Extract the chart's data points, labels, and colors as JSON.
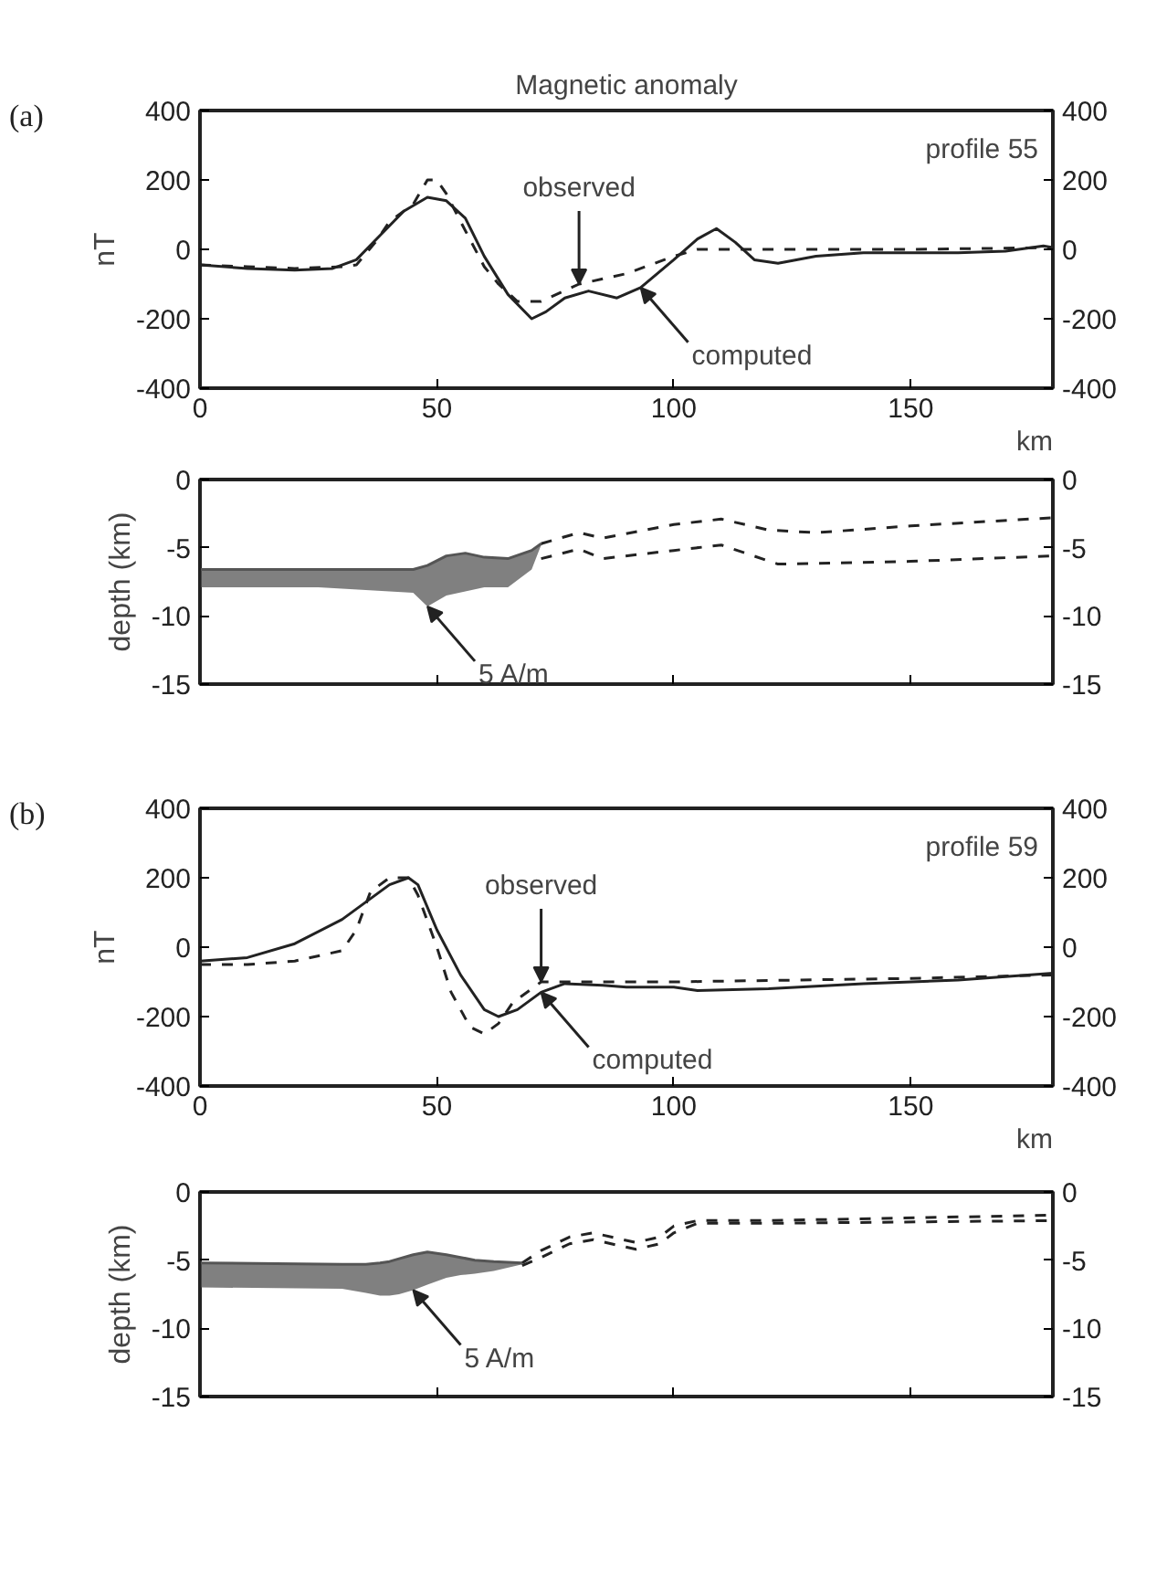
{
  "chart_data": [
    {
      "type": "line",
      "title": "Magnetic anomaly",
      "xlabel": "km",
      "ylabel": "nT",
      "xlim": [
        0,
        180
      ],
      "xticks": [
        0,
        50,
        100,
        150
      ],
      "ylim": [
        -400,
        400
      ],
      "yticks": [
        -400,
        -200,
        0,
        200,
        400
      ],
      "y2lim": [
        -400,
        400
      ],
      "y2ticks": [
        -400,
        -200,
        0,
        200,
        400
      ],
      "grid": false,
      "annotations": [
        "(a)",
        "profile 55",
        {
          "text": "observed",
          "x": 80,
          "y": -100
        },
        {
          "text": "computed",
          "x": 93,
          "y": -110
        }
      ],
      "series": [
        {
          "line_style": "dashed",
          "color": "#222222",
          "x": [
            0,
            10,
            20,
            30,
            33,
            37,
            40,
            45,
            48,
            50,
            52,
            55,
            60,
            63,
            67,
            72,
            80,
            90,
            100,
            105,
            110,
            150,
            180
          ],
          "values": [
            -45,
            -50,
            -55,
            -50,
            -45,
            20,
            80,
            130,
            200,
            200,
            160,
            80,
            -50,
            -100,
            -150,
            -150,
            -100,
            -70,
            -20,
            0,
            0,
            0,
            5
          ]
        },
        {
          "line_style": "solid",
          "color": "#222222",
          "x": [
            0,
            10,
            20,
            28,
            33,
            38,
            43,
            48,
            52,
            56,
            60,
            65,
            70,
            73,
            77,
            82,
            88,
            93,
            100,
            105,
            109,
            113,
            117,
            122,
            130,
            140,
            150,
            160,
            170,
            178,
            180
          ],
          "values": [
            -45,
            -55,
            -60,
            -55,
            -30,
            40,
            110,
            150,
            140,
            90,
            -20,
            -130,
            -200,
            -180,
            -140,
            -120,
            -140,
            -110,
            -30,
            30,
            60,
            20,
            -30,
            -40,
            -20,
            -10,
            -10,
            -10,
            -5,
            10,
            5
          ]
        }
      ]
    },
    {
      "type": "line",
      "ylabel": "depth (km)",
      "xlim": [
        0,
        180
      ],
      "xticks": [
        0,
        50,
        100,
        150
      ],
      "ylim": [
        -15,
        0
      ],
      "yticks": [
        -15,
        -10,
        -5,
        0
      ],
      "y2lim": [
        -15,
        0
      ],
      "y2ticks": [
        -15,
        -10,
        -5,
        0
      ],
      "tick_labels": "y",
      "grid": false,
      "annotations": [
        {
          "text": "5 A/m",
          "x": 48,
          "y": -9.3
        }
      ],
      "series": [
        {
          "line_style": "solid",
          "color": "#555555",
          "x": [
            0,
            25,
            45,
            48,
            52,
            56,
            60,
            65,
            70,
            72
          ],
          "values": [
            -6.6,
            -6.6,
            -6.6,
            -6.3,
            -5.6,
            -5.4,
            -5.7,
            -5.8,
            -5.2,
            -4.7
          ],
          "upper": [
            -6.6,
            -6.6,
            -6.6,
            -6.3,
            -5.6,
            -5.4,
            -5.7,
            -5.8,
            -5.2,
            -4.7
          ],
          "lower": [
            -7.9,
            -7.9,
            -8.3,
            -9.3,
            -8.5,
            -8.2,
            -7.9,
            -7.9,
            -6.6,
            -4.8
          ]
        },
        {
          "line_style": "dashed",
          "color": "#222222",
          "x": [
            72,
            80,
            85,
            100,
            110,
            120,
            130,
            150,
            180
          ],
          "values": [
            -4.7,
            -3.9,
            -4.3,
            -3.3,
            -2.9,
            -3.7,
            -3.9,
            -3.4,
            -2.8
          ]
        },
        {
          "line_style": "dashed",
          "color": "#222222",
          "x": [
            72,
            80,
            85,
            100,
            110,
            122,
            150,
            180
          ],
          "values": [
            -5.8,
            -5.1,
            -5.8,
            -5.2,
            -4.8,
            -6.2,
            -6.0,
            -5.6
          ]
        }
      ]
    },
    {
      "type": "line",
      "xlabel": "km",
      "ylabel": "nT",
      "xlim": [
        0,
        180
      ],
      "xticks": [
        0,
        50,
        100,
        150
      ],
      "ylim": [
        -400,
        400
      ],
      "yticks": [
        -400,
        -200,
        0,
        200,
        400
      ],
      "y2lim": [
        -400,
        400
      ],
      "y2ticks": [
        -400,
        -200,
        0,
        200,
        400
      ],
      "grid": false,
      "annotations": [
        "(b)",
        "profile 59",
        {
          "text": "observed",
          "x": 72,
          "y": -100
        },
        {
          "text": "computed",
          "x": 72,
          "y": -130
        }
      ],
      "series": [
        {
          "line_style": "dashed",
          "color": "#222222",
          "x": [
            0,
            10,
            20,
            30,
            33,
            36,
            40,
            44,
            46,
            50,
            53,
            57,
            60,
            63,
            66,
            70,
            72,
            100,
            150,
            180
          ],
          "values": [
            -50,
            -50,
            -40,
            -10,
            50,
            160,
            200,
            200,
            150,
            0,
            -130,
            -230,
            -250,
            -220,
            -160,
            -120,
            -100,
            -100,
            -90,
            -80
          ]
        },
        {
          "line_style": "solid",
          "color": "#222222",
          "x": [
            0,
            10,
            20,
            30,
            35,
            40,
            44,
            46,
            50,
            55,
            60,
            63,
            67,
            72,
            77,
            85,
            90,
            100,
            105,
            120,
            140,
            160,
            180
          ],
          "values": [
            -40,
            -30,
            10,
            80,
            130,
            180,
            200,
            180,
            50,
            -80,
            -180,
            -200,
            -180,
            -130,
            -105,
            -110,
            -115,
            -115,
            -125,
            -120,
            -105,
            -95,
            -75
          ]
        }
      ]
    },
    {
      "type": "line",
      "ylabel": "depth (km)",
      "xlim": [
        0,
        180
      ],
      "xticks": [
        0,
        50,
        100,
        150
      ],
      "ylim": [
        -15,
        0
      ],
      "yticks": [
        -15,
        -10,
        -5,
        0
      ],
      "y2lim": [
        -15,
        0
      ],
      "y2ticks": [
        -15,
        -10,
        -5,
        0
      ],
      "tick_labels": "y",
      "grid": false,
      "annotations": [
        {
          "text": "5 A/m",
          "x": 45,
          "y": -7.2
        }
      ],
      "series": [
        {
          "line_style": "solid",
          "color": "#555555",
          "x": [
            0,
            30,
            35,
            38,
            40,
            42,
            45,
            48,
            52,
            55,
            58,
            62,
            68
          ],
          "values": [
            -5.2,
            -5.3,
            -5.3,
            -5.2,
            -5.1,
            -4.9,
            -4.6,
            -4.4,
            -4.6,
            -4.8,
            -5.0,
            -5.1,
            -5.2
          ],
          "upper": [
            -5.2,
            -5.3,
            -5.3,
            -5.2,
            -5.1,
            -4.9,
            -4.6,
            -4.4,
            -4.6,
            -4.8,
            -5.0,
            -5.1,
            -5.2
          ],
          "lower": [
            -7.0,
            -7.1,
            -7.4,
            -7.6,
            -7.6,
            -7.5,
            -7.2,
            -6.8,
            -6.3,
            -6.1,
            -6.0,
            -5.8,
            -5.3
          ]
        },
        {
          "line_style": "dashed",
          "color": "#222222",
          "x": [
            68,
            72,
            78,
            83,
            88,
            92,
            97,
            100,
            105,
            120,
            180
          ],
          "values": [
            -5.2,
            -4.3,
            -3.3,
            -3.0,
            -3.4,
            -3.7,
            -3.3,
            -2.5,
            -2.1,
            -2.1,
            -1.7
          ]
        },
        {
          "line_style": "dashed",
          "color": "#222222",
          "x": [
            68,
            72,
            78,
            83,
            88,
            92,
            97,
            100,
            105,
            120,
            180
          ],
          "values": [
            -5.4,
            -4.8,
            -3.8,
            -3.5,
            -3.9,
            -4.2,
            -3.8,
            -3.0,
            -2.3,
            -2.3,
            -2.1
          ]
        }
      ]
    }
  ]
}
